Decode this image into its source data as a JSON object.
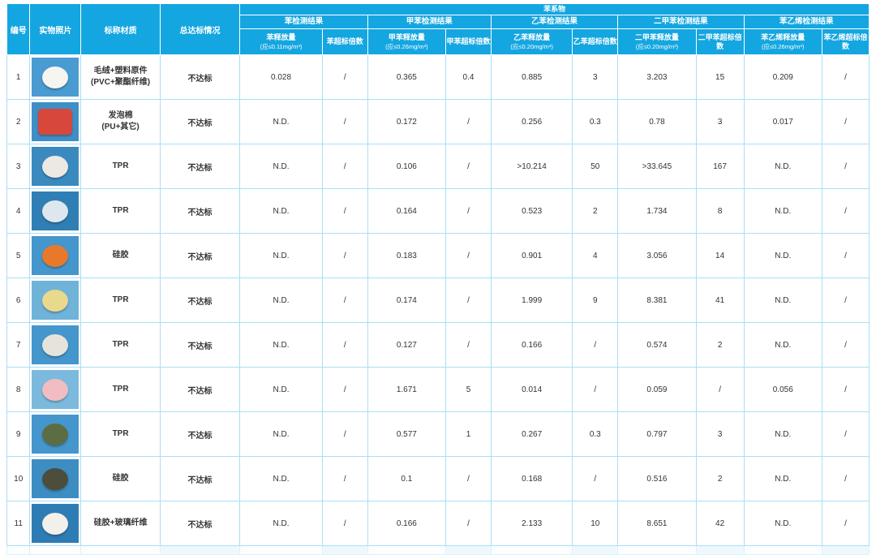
{
  "table": {
    "top_header": "苯系物",
    "columns": {
      "id": "编号",
      "photo": "实物照片",
      "material": "标称材质",
      "overall": "总达标情况"
    },
    "groups": [
      {
        "title": "苯检测结果",
        "release": "苯释放量",
        "limit": "(应≤0.11mg/m³)",
        "ratio": "苯超标倍数"
      },
      {
        "title": "甲苯检测结果",
        "release": "甲苯释放量",
        "limit": "(应≤0.26mg/m³)",
        "ratio": "甲苯超标倍数"
      },
      {
        "title": "乙苯检测结果",
        "release": "乙苯释放量",
        "limit": "(应≤0.20mg/m³)",
        "ratio": "乙苯超标倍数"
      },
      {
        "title": "二甲苯检测结果",
        "release": "二甲苯释放量",
        "limit": "(应≤0.20mg/m³)",
        "ratio": "二甲苯超标倍数"
      },
      {
        "title": "苯乙烯检测结果",
        "release": "苯乙烯释放量",
        "limit": "(应≤0.26mg/m³)",
        "ratio": "苯乙烯超标倍数"
      }
    ],
    "rows": [
      {
        "id": "1",
        "material": "毛绒+塑料原件\n(PVC+聚酯纤维)",
        "overall": "不达标",
        "photo": {
          "bg": "#4a9bd1",
          "toy": "#f6f5f0",
          "shape": "circle"
        },
        "values": [
          "0.028",
          "/",
          "0.365",
          "0.4",
          "0.885",
          "3",
          "3.203",
          "15",
          "0.209",
          "/"
        ]
      },
      {
        "id": "2",
        "material": "发泡棉\n(PU+其它)",
        "overall": "不达标",
        "photo": {
          "bg": "#3f8fc6",
          "toy": "#d7473c",
          "shape": "square"
        },
        "values": [
          "N.D.",
          "/",
          "0.172",
          "/",
          "0.256",
          "0.3",
          "0.78",
          "3",
          "0.017",
          "/"
        ]
      },
      {
        "id": "3",
        "material": "TPR",
        "overall": "不达标",
        "photo": {
          "bg": "#3a8ac0",
          "toy": "#ece9e2",
          "shape": "circle"
        },
        "values": [
          "N.D.",
          "/",
          "0.106",
          "/",
          ">10.214",
          "50",
          ">33.645",
          "167",
          "N.D.",
          "/"
        ]
      },
      {
        "id": "4",
        "material": "TPR",
        "overall": "不达标",
        "photo": {
          "bg": "#2f7fb5",
          "toy": "#dfe7ee",
          "shape": "circle"
        },
        "values": [
          "N.D.",
          "/",
          "0.164",
          "/",
          "0.523",
          "2",
          "1.734",
          "8",
          "N.D.",
          "/"
        ]
      },
      {
        "id": "5",
        "material": "硅胶",
        "overall": "不达标",
        "photo": {
          "bg": "#4596cc",
          "toy": "#e8792a",
          "shape": "circle"
        },
        "values": [
          "N.D.",
          "/",
          "0.183",
          "/",
          "0.901",
          "4",
          "3.056",
          "14",
          "N.D.",
          "/"
        ]
      },
      {
        "id": "6",
        "material": "TPR",
        "overall": "不达标",
        "photo": {
          "bg": "#6fb3d9",
          "toy": "#e9d98c",
          "shape": "circle"
        },
        "values": [
          "N.D.",
          "/",
          "0.174",
          "/",
          "1.999",
          "9",
          "8.381",
          "41",
          "N.D.",
          "/"
        ]
      },
      {
        "id": "7",
        "material": "TPR",
        "overall": "不达标",
        "photo": {
          "bg": "#4596cc",
          "toy": "#e6e4da",
          "shape": "circle"
        },
        "values": [
          "N.D.",
          "/",
          "0.127",
          "/",
          "0.166",
          "/",
          "0.574",
          "2",
          "N.D.",
          "/"
        ]
      },
      {
        "id": "8",
        "material": "TPR",
        "overall": "不达标",
        "photo": {
          "bg": "#7cbadd",
          "toy": "#f2bcc3",
          "shape": "circle"
        },
        "values": [
          "N.D.",
          "/",
          "1.671",
          "5",
          "0.014",
          "/",
          "0.059",
          "/",
          "0.056",
          "/"
        ]
      },
      {
        "id": "9",
        "material": "TPR",
        "overall": "不达标",
        "photo": {
          "bg": "#4596cc",
          "toy": "#5c6d44",
          "shape": "circle"
        },
        "values": [
          "N.D.",
          "/",
          "0.577",
          "1",
          "0.267",
          "0.3",
          "0.797",
          "3",
          "N.D.",
          "/"
        ]
      },
      {
        "id": "10",
        "material": "硅胶",
        "overall": "不达标",
        "photo": {
          "bg": "#3d8dc2",
          "toy": "#4d4d3c",
          "shape": "circle"
        },
        "values": [
          "N.D.",
          "/",
          "0.1",
          "/",
          "0.168",
          "/",
          "0.516",
          "2",
          "N.D.",
          "/"
        ]
      },
      {
        "id": "11",
        "material": "硅胶+玻璃纤维",
        "overall": "不达标",
        "photo": {
          "bg": "#2e7cb4",
          "toy": "#f2f0ea",
          "shape": "circle"
        },
        "values": [
          "N.D.",
          "/",
          "0.166",
          "/",
          "2.133",
          "10",
          "8.651",
          "42",
          "N.D.",
          "/"
        ]
      }
    ]
  },
  "colors": {
    "header_blue": "#14a6e0",
    "light_blue_cell": "#cfecf9",
    "grid_border": "#a9dff7",
    "fail_orange": "#f59a23"
  }
}
